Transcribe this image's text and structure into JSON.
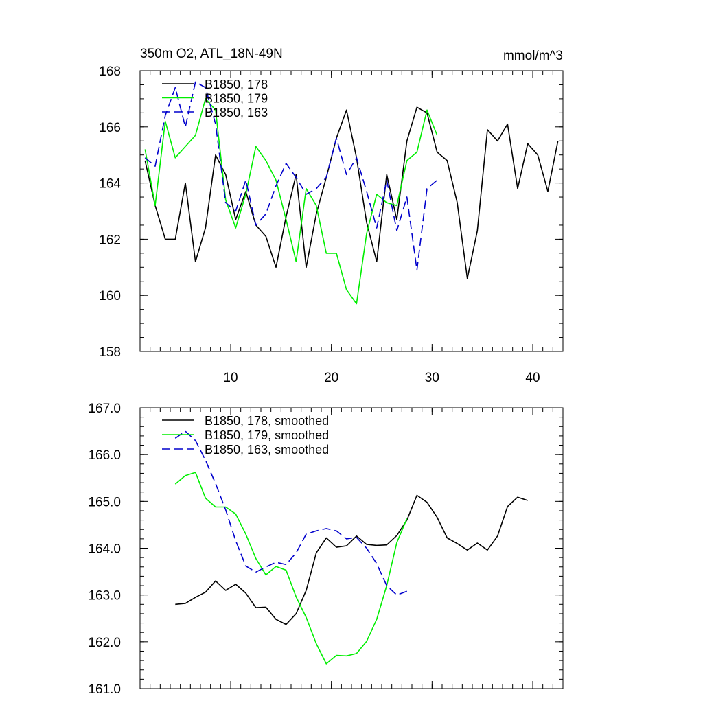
{
  "chart_data": [
    {
      "type": "line",
      "title": "350m O2, ATL_18N-49N",
      "units": "mmol/m^3",
      "xlabel": "",
      "ylabel": "",
      "xlim": [
        1,
        43
      ],
      "ylim": [
        158,
        168
      ],
      "xticks": [
        10,
        20,
        30,
        40
      ],
      "yticks": [
        158,
        160,
        162,
        164,
        166,
        168
      ],
      "ytick_labels": [
        "158",
        "160",
        "162",
        "164",
        "166",
        "168"
      ],
      "yminor_step": 0.5,
      "xminor_step": 1,
      "show_xtick_labels": true,
      "legend_position": "top-left",
      "series": [
        {
          "name": "B1850, 178",
          "color": "#000000",
          "dash": "solid",
          "x": [
            1.5,
            2.5,
            3.5,
            4.5,
            5.5,
            6.5,
            7.5,
            8.5,
            9.5,
            10.5,
            11.5,
            12.5,
            13.5,
            14.5,
            15.5,
            16.5,
            17.5,
            18.5,
            19.5,
            20.5,
            21.5,
            22.5,
            23.5,
            24.5,
            25.5,
            26.5,
            27.5,
            28.5,
            29.5,
            30.5,
            31.5,
            32.5,
            33.5,
            34.5,
            35.5,
            36.5,
            37.5,
            38.5,
            39.5,
            40.5,
            41.5,
            42.5
          ],
          "values": [
            164.8,
            163.2,
            162.0,
            162.0,
            164.0,
            161.2,
            162.4,
            165.0,
            164.3,
            162.7,
            163.7,
            162.5,
            162.1,
            161.0,
            162.8,
            164.3,
            161.0,
            162.9,
            164.2,
            165.6,
            166.6,
            164.9,
            162.6,
            161.2,
            164.3,
            162.7,
            165.5,
            166.7,
            166.5,
            165.1,
            164.8,
            163.3,
            160.6,
            162.3,
            165.9,
            165.5,
            166.1,
            163.8,
            165.4,
            165.0,
            163.7,
            165.5
          ]
        },
        {
          "name": "B1850, 179",
          "color": "#00ee00",
          "dash": "solid",
          "x": [
            1.5,
            2.5,
            3.5,
            4.5,
            5.5,
            6.5,
            7.5,
            8.5,
            9.5,
            10.5,
            11.5,
            12.5,
            13.5,
            14.5,
            15.5,
            16.5,
            17.5,
            18.5,
            19.5,
            20.5,
            21.5,
            22.5,
            23.5,
            24.5,
            25.5,
            26.5,
            27.5,
            28.5,
            29.5,
            30.5
          ],
          "values": [
            165.2,
            163.2,
            166.2,
            164.9,
            165.3,
            165.7,
            167.0,
            166.6,
            163.4,
            162.4,
            163.6,
            165.3,
            164.8,
            164.1,
            162.7,
            161.2,
            163.8,
            163.2,
            161.5,
            161.5,
            160.2,
            159.7,
            162.2,
            163.6,
            163.3,
            163.2,
            164.8,
            165.1,
            166.6,
            165.7
          ]
        },
        {
          "name": "B1850, 163",
          "color": "#0000cc",
          "dash": "dashed",
          "x": [
            1.5,
            2.5,
            3.5,
            4.5,
            5.5,
            6.5,
            7.5,
            8.5,
            9.5,
            10.5,
            11.5,
            12.5,
            13.5,
            14.5,
            15.5,
            16.5,
            17.5,
            18.5,
            19.5,
            20.5,
            21.5,
            22.5,
            23.5,
            24.5,
            25.5,
            26.5,
            27.5,
            28.5,
            29.5,
            30.5
          ],
          "values": [
            164.9,
            164.6,
            166.4,
            167.4,
            166.0,
            167.6,
            167.4,
            166.1,
            163.3,
            163.0,
            164.1,
            162.5,
            162.9,
            163.9,
            164.7,
            164.2,
            163.6,
            163.8,
            164.2,
            165.6,
            164.3,
            164.9,
            163.7,
            162.4,
            164.1,
            162.3,
            163.5,
            160.9,
            163.8,
            164.1
          ]
        }
      ]
    },
    {
      "type": "line",
      "title": "",
      "xlabel": "",
      "ylabel": "",
      "xlim": [
        1,
        43
      ],
      "ylim": [
        161,
        167
      ],
      "xticks": [
        10,
        20,
        30,
        40
      ],
      "yticks": [
        161,
        162,
        163,
        164,
        165,
        166,
        167
      ],
      "ytick_labels": [
        "161.0",
        "162.0",
        "163.0",
        "164.0",
        "165.0",
        "166.0",
        "167.0"
      ],
      "yminor_step": 0.2,
      "xminor_step": 1,
      "show_xtick_labels": false,
      "legend_position": "top-left",
      "series": [
        {
          "name": "B1850, 178, smoothed",
          "color": "#000000",
          "dash": "solid",
          "x": [
            4.5,
            5.5,
            6.5,
            7.5,
            8.5,
            9.5,
            10.5,
            11.5,
            12.5,
            13.5,
            14.5,
            15.5,
            16.5,
            17.5,
            18.5,
            19.5,
            20.5,
            21.5,
            22.5,
            23.5,
            24.5,
            25.5,
            26.5,
            27.5,
            28.5,
            29.5,
            30.5,
            31.5,
            32.5,
            33.5,
            34.5,
            35.5,
            36.5,
            37.5,
            38.5,
            39.5
          ],
          "values": [
            162.8,
            162.82,
            162.95,
            163.06,
            163.3,
            163.1,
            163.23,
            163.04,
            162.73,
            162.74,
            162.48,
            162.37,
            162.6,
            163.1,
            163.9,
            164.22,
            164.02,
            164.05,
            164.26,
            164.08,
            164.06,
            164.07,
            164.27,
            164.6,
            165.13,
            164.98,
            164.66,
            164.22,
            164.1,
            163.96,
            164.11,
            163.96,
            164.26,
            164.89,
            165.09,
            165.02
          ]
        },
        {
          "name": "B1850, 179, smoothed",
          "color": "#00ee00",
          "dash": "solid",
          "x": [
            4.5,
            5.5,
            6.5,
            7.5,
            8.5,
            9.5,
            10.5,
            11.5,
            12.5,
            13.5,
            14.5,
            15.5,
            16.5,
            17.5,
            18.5,
            19.5,
            20.5,
            21.5,
            22.5,
            23.5,
            24.5,
            25.5,
            26.5,
            27.5
          ],
          "values": [
            165.37,
            165.55,
            165.62,
            165.07,
            164.88,
            164.88,
            164.73,
            164.3,
            163.78,
            163.43,
            163.61,
            163.53,
            162.96,
            162.52,
            161.96,
            161.53,
            161.71,
            161.7,
            161.75,
            162.01,
            162.48,
            163.2,
            164.12,
            164.63
          ]
        },
        {
          "name": "B1850, 163, smoothed",
          "color": "#0000cc",
          "dash": "dashed",
          "x": [
            4.5,
            5.5,
            6.5,
            7.5,
            8.5,
            9.5,
            10.5,
            11.5,
            12.5,
            13.5,
            14.5,
            15.5,
            16.5,
            17.5,
            18.5,
            19.5,
            20.5,
            21.5,
            22.5,
            23.5,
            24.5,
            25.5,
            26.5,
            27.5
          ],
          "values": [
            166.35,
            166.5,
            166.3,
            165.88,
            165.38,
            164.82,
            164.16,
            163.62,
            163.49,
            163.6,
            163.7,
            163.65,
            163.9,
            164.3,
            164.37,
            164.42,
            164.37,
            164.2,
            164.23,
            164.0,
            163.67,
            163.2,
            163.0,
            163.08
          ]
        }
      ]
    }
  ]
}
